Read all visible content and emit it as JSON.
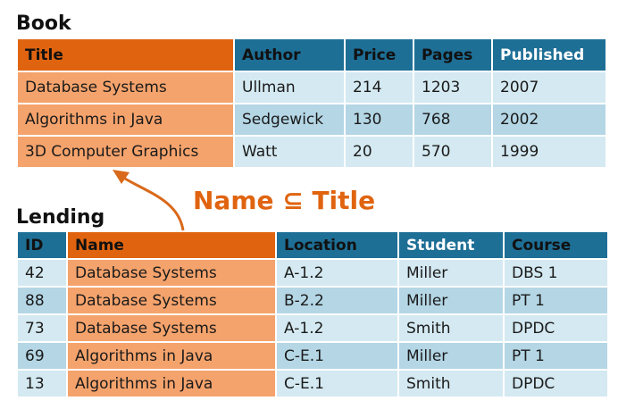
{
  "book": {
    "heading": "Book",
    "columns": [
      "Title",
      "Author",
      "Price",
      "Pages",
      "Published"
    ],
    "rows": [
      [
        "Database Systems",
        "Ullman",
        "214",
        "1203",
        "2007"
      ],
      [
        "Algorithms in Java",
        "Sedgewick",
        "130",
        "768",
        "2002"
      ],
      [
        "3D Computer Graphics",
        "Watt",
        "20",
        "570",
        "1999"
      ]
    ]
  },
  "lending": {
    "heading": "Lending",
    "columns": [
      "ID",
      "Name",
      "Location",
      "Student",
      "Course"
    ],
    "rows": [
      [
        "42",
        "Database Systems",
        "A-1.2",
        "Miller",
        "DBS 1"
      ],
      [
        "88",
        "Database Systems",
        "B-2.2",
        "Miller",
        "PT 1"
      ],
      [
        "73",
        "Database Systems",
        "A-1.2",
        "Smith",
        "DPDC"
      ],
      [
        "69",
        "Algorithms in Java",
        "C-E.1",
        "Miller",
        "PT 1"
      ],
      [
        "13",
        "Algorithms in Java",
        "C-E.1",
        "Smith",
        "DPDC"
      ]
    ]
  },
  "annotation": {
    "text": "Name ⊆ Title"
  },
  "colors": {
    "orange_header": "#e06410",
    "orange_cell": "#f5a36c",
    "blue_header": "#1e6f96",
    "blue_row_light": "#d4e9f1",
    "blue_row_dark": "#b4d6e5"
  }
}
